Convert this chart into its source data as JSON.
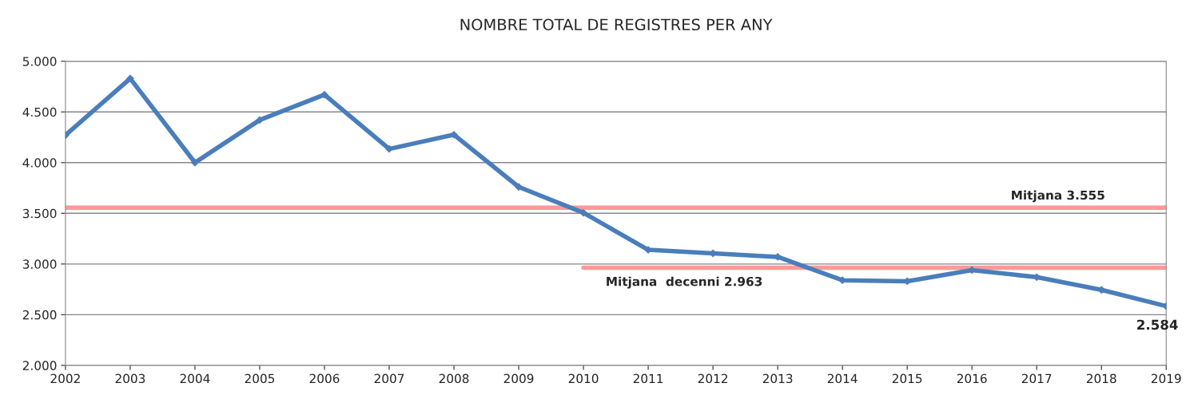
{
  "chart_data": {
    "type": "line",
    "title": "NOMBRE TOTAL DE REGISTRES PER ANY",
    "x": [
      2002,
      2003,
      2004,
      2005,
      2006,
      2007,
      2008,
      2009,
      2010,
      2011,
      2012,
      2013,
      2014,
      2015,
      2016,
      2017,
      2018,
      2019
    ],
    "series": [
      {
        "color": "#4a7ebb",
        "values": [
          4270,
          4830,
          4000,
          4420,
          4670,
          4135,
          4275,
          3760,
          3505,
          3140,
          3105,
          3070,
          2840,
          2830,
          2940,
          2870,
          2745,
          2584
        ],
        "value_labels": [
          null,
          null,
          null,
          null,
          null,
          null,
          null,
          null,
          null,
          null,
          null,
          null,
          null,
          null,
          null,
          null,
          null,
          "2.584"
        ]
      },
      {
        "type": "line",
        "color": "#ff9999",
        "marker": "none",
        "x": [
          2010,
          2019
        ],
        "values": [
          2963,
          2963
        ]
      }
    ],
    "ref_lines": [
      {
        "axis": "y",
        "value": 3555,
        "label": "Mitjana 3.555",
        "color": "#ff9999"
      }
    ],
    "annotations": [
      {
        "text": "Mitjana  decenni 2.963",
        "x": 2010,
        "y": 2963
      }
    ],
    "xlim": [
      2002,
      2019
    ],
    "xticks": [
      2002,
      2003,
      2004,
      2005,
      2006,
      2007,
      2008,
      2009,
      2010,
      2011,
      2012,
      2013,
      2014,
      2015,
      2016,
      2017,
      2018,
      2019
    ],
    "ylim": [
      2000,
      5000
    ],
    "yticks": [
      {
        "value": 2000,
        "label": "2.000"
      },
      {
        "value": 2500,
        "label": "2.500"
      },
      {
        "value": 3000,
        "label": "3.000"
      },
      {
        "value": 3500,
        "label": "3.500"
      },
      {
        "value": 4000,
        "label": "4.000"
      },
      {
        "value": 4500,
        "label": "4.500"
      },
      {
        "value": 5000,
        "label": "5.000"
      }
    ],
    "grid": "y",
    "marker": "diamond",
    "line_style": "solid"
  }
}
